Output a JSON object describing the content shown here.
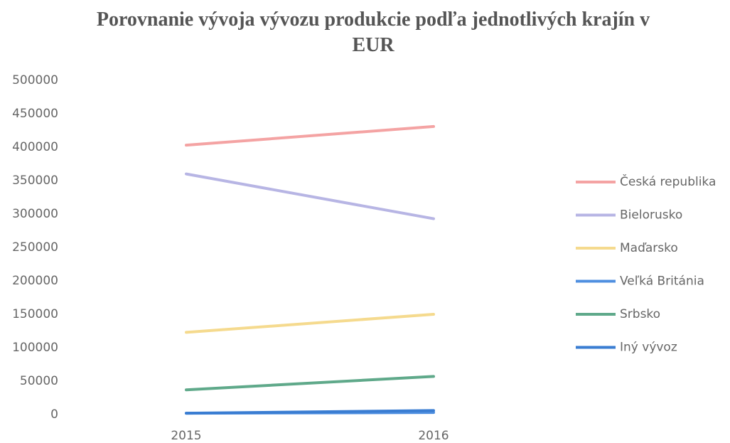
{
  "chart_data": {
    "type": "line",
    "title": "Porovnanie vývoja vývozu produkcie podľa jednotlivých krajín v EUR",
    "x": [
      "2015",
      "2016"
    ],
    "series": [
      {
        "name": "Česká republika",
        "color": "#f4a3a3",
        "values": [
          403000,
          431000
        ]
      },
      {
        "name": "Bielorusko",
        "color": "#b7b5e4",
        "values": [
          360000,
          293000
        ]
      },
      {
        "name": "Maďarsko",
        "color": "#f5da8e",
        "values": [
          123000,
          150000
        ]
      },
      {
        "name": "Veľká Británia",
        "color": "#4f8fe0",
        "values": [
          2000,
          3000
        ]
      },
      {
        "name": "Srbsko",
        "color": "#5fa98a",
        "values": [
          37000,
          57000
        ]
      },
      {
        "name": "Iný vývoz",
        "color": "#3a7dd2",
        "values": [
          2000,
          6000
        ]
      }
    ],
    "ylim": [
      0,
      500000
    ],
    "yticks": [
      0,
      50000,
      100000,
      150000,
      200000,
      250000,
      300000,
      350000,
      400000,
      450000,
      500000
    ],
    "grid": false,
    "legend": "right"
  }
}
